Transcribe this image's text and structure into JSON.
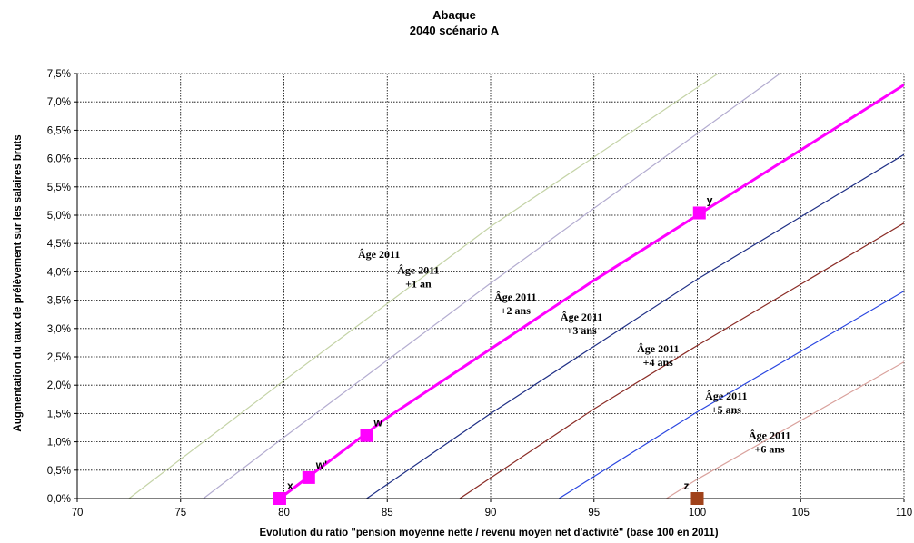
{
  "chart_data": {
    "type": "line",
    "title": "Abaque",
    "subtitle": "2040 scénario A",
    "xlabel": "Evolution du ratio \"pension moyenne nette / revenu moyen net d'activité\" (base 100 en 2011)",
    "ylabel": "Augmentation du taux de prélèvement sur les salaires bruts",
    "xlim": [
      70,
      110
    ],
    "ylim": [
      0,
      0.075
    ],
    "grid": true,
    "x_ticks": [
      70,
      75,
      80,
      85,
      90,
      95,
      100,
      105,
      110
    ],
    "x_tick_labels": [
      "70",
      "75",
      "80",
      "85",
      "90",
      "95",
      "100",
      "105",
      "110"
    ],
    "y_ticks": [
      0,
      0.005,
      0.01,
      0.015,
      0.02,
      0.025,
      0.03,
      0.035,
      0.04,
      0.045,
      0.05,
      0.055,
      0.06,
      0.065,
      0.07,
      0.075
    ],
    "y_tick_labels": [
      "0,0%",
      "0,5%",
      "1,0%",
      "1,5%",
      "2,0%",
      "2,5%",
      "3,0%",
      "3,5%",
      "4,0%",
      "4,5%",
      "5,0%",
      "5,5%",
      "6,0%",
      "6,5%",
      "7,0%",
      "7,5%"
    ],
    "series": [
      {
        "color": "#c4d3a6",
        "width": 1.2,
        "points": [
          [
            72.5,
            0
          ],
          [
            80,
            0.0208
          ],
          [
            90,
            0.048
          ],
          [
            101,
            0.075
          ]
        ]
      },
      {
        "color": "#b3acd0",
        "width": 1.2,
        "points": [
          [
            76.1,
            0
          ],
          [
            80,
            0.0108
          ],
          [
            90,
            0.038
          ],
          [
            104,
            0.075
          ]
        ]
      },
      {
        "color": "#ff00ff",
        "width": 3,
        "points": [
          [
            79.8,
            0
          ],
          [
            85,
            0.0143
          ],
          [
            95,
            0.0385
          ],
          [
            110,
            0.073
          ]
        ]
      },
      {
        "color": "#1f2f86",
        "width": 1.2,
        "points": [
          [
            84.0,
            0
          ],
          [
            90,
            0.015
          ],
          [
            100,
            0.0387
          ],
          [
            110,
            0.0607
          ]
        ]
      },
      {
        "color": "#8b2c26",
        "width": 1.2,
        "points": [
          [
            88.5,
            0
          ],
          [
            95,
            0.0158
          ],
          [
            100,
            0.027
          ],
          [
            110,
            0.0486
          ]
        ]
      },
      {
        "color": "#2945e0",
        "width": 1.2,
        "points": [
          [
            93.3,
            0
          ],
          [
            100,
            0.0153
          ],
          [
            110,
            0.0366
          ]
        ]
      },
      {
        "color": "#d9a19c",
        "width": 1.2,
        "points": [
          [
            98.5,
            0
          ],
          [
            100,
            0.0034
          ],
          [
            110,
            0.0241
          ]
        ]
      }
    ],
    "points": [
      {
        "label": "x",
        "x": 79.8,
        "y": 0.0,
        "color": "#ff00ff"
      },
      {
        "label": "w'",
        "x": 81.2,
        "y": 0.0037,
        "color": "#ff00ff"
      },
      {
        "label": "w",
        "x": 84.0,
        "y": 0.0111,
        "color": "#ff00ff"
      },
      {
        "label": "y",
        "x": 100.1,
        "y": 0.0504,
        "color": "#ff00ff"
      },
      {
        "label": "z",
        "x": 100.0,
        "y": 0.0,
        "color": "#a0421a"
      }
    ],
    "annotations": [
      {
        "lines": [
          "Âge 2011"
        ],
        "x": 84.6,
        "y": 0.0425
      },
      {
        "lines": [
          "Âge 2011",
          "+1 an"
        ],
        "x": 86.5,
        "y": 0.0397
      },
      {
        "lines": [
          "Âge 2011",
          "+2 ans"
        ],
        "x": 91.2,
        "y": 0.0349
      },
      {
        "lines": [
          "Âge 2011",
          "+3 ans"
        ],
        "x": 94.4,
        "y": 0.0314
      },
      {
        "lines": [
          "Âge 2011",
          "+4 ans"
        ],
        "x": 98.1,
        "y": 0.0258
      },
      {
        "lines": [
          "Âge 2011",
          "+5 ans"
        ],
        "x": 101.4,
        "y": 0.0175
      },
      {
        "lines": [
          "Âge 2011",
          "+6 ans"
        ],
        "x": 103.5,
        "y": 0.0105
      }
    ]
  }
}
